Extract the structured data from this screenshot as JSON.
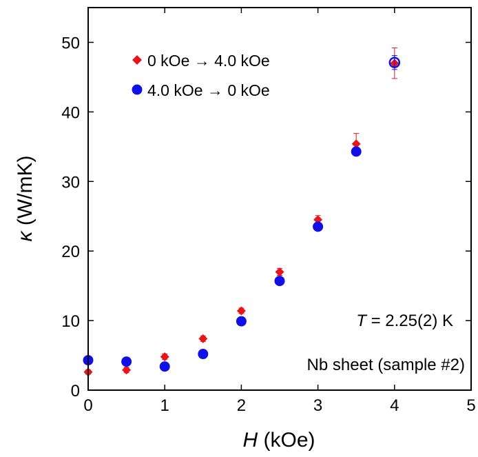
{
  "chart_data": {
    "type": "scatter",
    "xlabel_symbol": "H",
    "xlabel_unit": " (kOe)",
    "ylabel_symbol": "κ",
    "ylabel_unit": " (W/mK)",
    "xlim": [
      0,
      5
    ],
    "ylim": [
      0,
      55
    ],
    "xticks": [
      0,
      1,
      2,
      3,
      4,
      5
    ],
    "yticks": [
      0,
      10,
      20,
      30,
      40,
      50
    ],
    "legend_position": "top-left",
    "grid": false,
    "series": [
      {
        "name": "0 kOe → 4.0 kOe",
        "marker": "diamond",
        "color": "#e8141c",
        "x": [
          0,
          0.5,
          1,
          1.5,
          2,
          2.5,
          3,
          3.5,
          4
        ],
        "y": [
          2.6,
          2.9,
          4.8,
          7.4,
          11.4,
          17.0,
          24.5,
          35.4,
          47.0
        ],
        "err": [
          0.3,
          0.4,
          0.4,
          0.4,
          0.4,
          0.5,
          0.6,
          1.5,
          2.2
        ]
      },
      {
        "name": "4.0 kOe → 0 kOe",
        "marker": "circle",
        "color": "#1010e6",
        "x": [
          0,
          0.5,
          1,
          1.5,
          2,
          2.5,
          3,
          3.5,
          4
        ],
        "y": [
          4.3,
          4.1,
          3.4,
          5.2,
          9.9,
          15.7,
          23.5,
          34.3,
          47.1
        ],
        "err": [
          0.3,
          0.3,
          0.3,
          0.3,
          0.3,
          0.4,
          0.5,
          0.6,
          1.0
        ]
      }
    ],
    "annotations": {
      "temp_symbol": "T",
      "temp_value": " = 2.25(2) K",
      "sample": "Nb sheet (sample #2)"
    }
  }
}
